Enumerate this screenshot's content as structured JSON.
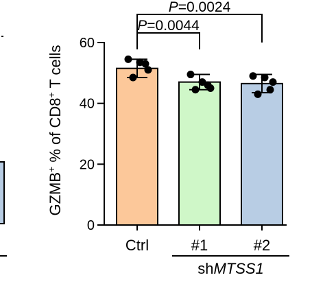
{
  "chart_data": {
    "type": "bar",
    "ylabel_parts": {
      "a": "GZMB",
      "sup1": "+",
      "b": " % of CD8",
      "sup2": "+",
      "c": " T cells"
    },
    "categories": [
      "Ctrl",
      "#1",
      "#2"
    ],
    "group_label": {
      "prefix": "sh",
      "gene": "MTSS1"
    },
    "values": [
      51.5,
      47.0,
      46.5
    ],
    "errors": [
      3.0,
      2.5,
      3.0
    ],
    "points": [
      [
        54.5,
        53.5,
        51.0,
        48.5,
        53.0
      ],
      [
        49.5,
        47.0,
        45.0,
        44.5,
        46.0
      ],
      [
        49.0,
        48.5,
        47.0,
        43.0,
        44.5
      ]
    ],
    "ylim": [
      0,
      60
    ],
    "yticks": [
      0,
      20,
      40,
      60
    ],
    "colors": [
      "#fcc89a",
      "#cff7c8",
      "#b8cde4"
    ],
    "significance": [
      {
        "from": 0,
        "to": 1,
        "p_label": "P",
        "p_value": "=0.0044"
      },
      {
        "from": 0,
        "to": 2,
        "p_label": "P",
        "p_value": "=0.0024"
      }
    ],
    "grid": false,
    "legend": "none"
  }
}
